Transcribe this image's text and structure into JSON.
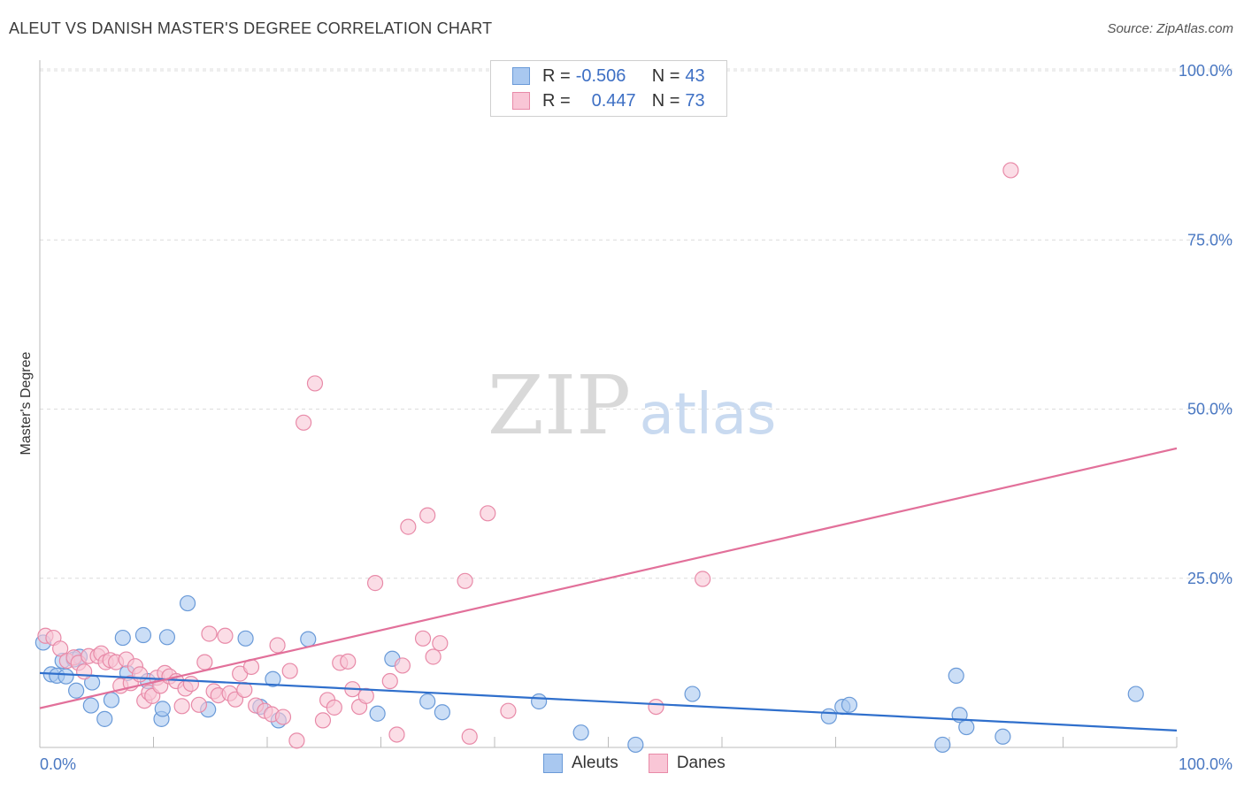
{
  "header": {
    "title": "ALEUT VS DANISH MASTER'S DEGREE CORRELATION CHART",
    "source": "Source: ZipAtlas.com"
  },
  "watermark": {
    "zip": "ZIP",
    "atlas": "atlas"
  },
  "legend": {
    "rows": [
      {
        "r_label": "R = ",
        "r_value": "-0.506",
        "n_label": "N = ",
        "n_value": "43",
        "color": "#a9c8f0",
        "border": "#6a9ad8"
      },
      {
        "r_label": "R = ",
        "r_value": "0.447",
        "n_label": "N = ",
        "n_value": "73",
        "color": "#f9c6d6",
        "border": "#e88aa8"
      }
    ]
  },
  "bottom_legend": {
    "aleuts": "Aleuts",
    "danes": "Danes"
  },
  "chart_data": {
    "type": "scatter",
    "ylabel": "Master's Degree",
    "x_tick_labels": [
      "0.0%",
      "100.0%"
    ],
    "y_tick_labels": [
      "25.0%",
      "50.0%",
      "75.0%",
      "100.0%"
    ],
    "y_ticks": [
      25,
      50,
      75,
      100
    ],
    "xlim": [
      0,
      100
    ],
    "ylim": [
      0,
      100
    ],
    "grid": true,
    "series": [
      {
        "name": "Aleuts",
        "color": "#a9c8f0",
        "stroke": "#6a9ad8",
        "trend_color": "#2f6fcc",
        "trend": [
          [
            0,
            11.0
          ],
          [
            100,
            2.5
          ]
        ],
        "points": [
          [
            0.3,
            15.5
          ],
          [
            1.0,
            10.8
          ],
          [
            1.5,
            10.6
          ],
          [
            2.0,
            12.8
          ],
          [
            2.3,
            10.5
          ],
          [
            3.0,
            13.0
          ],
          [
            3.2,
            8.4
          ],
          [
            3.5,
            13.4
          ],
          [
            4.5,
            6.2
          ],
          [
            4.6,
            9.6
          ],
          [
            5.7,
            4.2
          ],
          [
            6.3,
            7.0
          ],
          [
            7.3,
            16.2
          ],
          [
            7.7,
            11.0
          ],
          [
            9.1,
            16.6
          ],
          [
            9.5,
            9.8
          ],
          [
            10.7,
            4.2
          ],
          [
            10.8,
            5.7
          ],
          [
            11.2,
            16.3
          ],
          [
            13.0,
            21.3
          ],
          [
            14.8,
            5.6
          ],
          [
            18.1,
            16.1
          ],
          [
            19.4,
            6.0
          ],
          [
            20.5,
            10.1
          ],
          [
            21.0,
            4.0
          ],
          [
            23.6,
            16.0
          ],
          [
            29.7,
            5.0
          ],
          [
            31.0,
            13.1
          ],
          [
            34.1,
            6.8
          ],
          [
            35.4,
            5.2
          ],
          [
            43.9,
            6.8
          ],
          [
            47.6,
            2.2
          ],
          [
            52.4,
            0.4
          ],
          [
            57.4,
            7.9
          ],
          [
            69.4,
            4.6
          ],
          [
            70.6,
            6.0
          ],
          [
            71.2,
            6.3
          ],
          [
            79.4,
            0.4
          ],
          [
            80.6,
            10.6
          ],
          [
            80.9,
            4.8
          ],
          [
            81.5,
            3.0
          ],
          [
            84.7,
            1.6
          ],
          [
            96.4,
            7.9
          ]
        ]
      },
      {
        "name": "Danes",
        "color": "#f9c6d6",
        "stroke": "#e88aa8",
        "trend_color": "#e2709a",
        "trend": [
          [
            0,
            5.8
          ],
          [
            100,
            44.2
          ]
        ],
        "points": [
          [
            0.5,
            16.5
          ],
          [
            1.2,
            16.2
          ],
          [
            1.8,
            14.6
          ],
          [
            2.4,
            12.8
          ],
          [
            3.0,
            13.3
          ],
          [
            3.4,
            12.5
          ],
          [
            3.9,
            11.2
          ],
          [
            4.3,
            13.5
          ],
          [
            5.1,
            13.5
          ],
          [
            5.4,
            13.9
          ],
          [
            5.8,
            12.6
          ],
          [
            6.2,
            12.9
          ],
          [
            6.7,
            12.6
          ],
          [
            7.1,
            9.1
          ],
          [
            7.6,
            13.0
          ],
          [
            8.0,
            9.5
          ],
          [
            8.4,
            12.0
          ],
          [
            8.8,
            10.8
          ],
          [
            9.2,
            6.9
          ],
          [
            9.6,
            8.1
          ],
          [
            9.9,
            7.6
          ],
          [
            10.3,
            10.3
          ],
          [
            10.6,
            9.1
          ],
          [
            11.0,
            11.0
          ],
          [
            11.4,
            10.5
          ],
          [
            12.0,
            9.8
          ],
          [
            12.5,
            6.1
          ],
          [
            12.8,
            8.7
          ],
          [
            13.3,
            9.4
          ],
          [
            14.0,
            6.3
          ],
          [
            14.5,
            12.6
          ],
          [
            14.9,
            16.8
          ],
          [
            15.3,
            8.3
          ],
          [
            15.7,
            7.7
          ],
          [
            16.3,
            16.5
          ],
          [
            16.7,
            8.0
          ],
          [
            17.2,
            7.1
          ],
          [
            17.6,
            10.9
          ],
          [
            18.0,
            8.5
          ],
          [
            18.6,
            11.9
          ],
          [
            19.0,
            6.2
          ],
          [
            19.8,
            5.4
          ],
          [
            20.4,
            4.9
          ],
          [
            20.9,
            15.1
          ],
          [
            21.4,
            4.5
          ],
          [
            22.0,
            11.3
          ],
          [
            22.6,
            1.0
          ],
          [
            23.2,
            48.0
          ],
          [
            24.2,
            53.8
          ],
          [
            24.9,
            4.0
          ],
          [
            25.3,
            7.0
          ],
          [
            25.9,
            5.9
          ],
          [
            26.4,
            12.5
          ],
          [
            27.1,
            12.7
          ],
          [
            27.5,
            8.6
          ],
          [
            28.1,
            6.0
          ],
          [
            28.7,
            7.6
          ],
          [
            29.5,
            24.3
          ],
          [
            30.8,
            9.8
          ],
          [
            31.4,
            1.9
          ],
          [
            31.9,
            12.1
          ],
          [
            32.4,
            32.6
          ],
          [
            33.7,
            16.1
          ],
          [
            34.1,
            34.3
          ],
          [
            34.6,
            13.4
          ],
          [
            35.2,
            15.4
          ],
          [
            37.4,
            24.6
          ],
          [
            37.8,
            1.6
          ],
          [
            39.4,
            34.6
          ],
          [
            41.2,
            5.4
          ],
          [
            54.2,
            6.0
          ],
          [
            58.3,
            24.9
          ],
          [
            85.4,
            85.3
          ]
        ]
      }
    ]
  }
}
